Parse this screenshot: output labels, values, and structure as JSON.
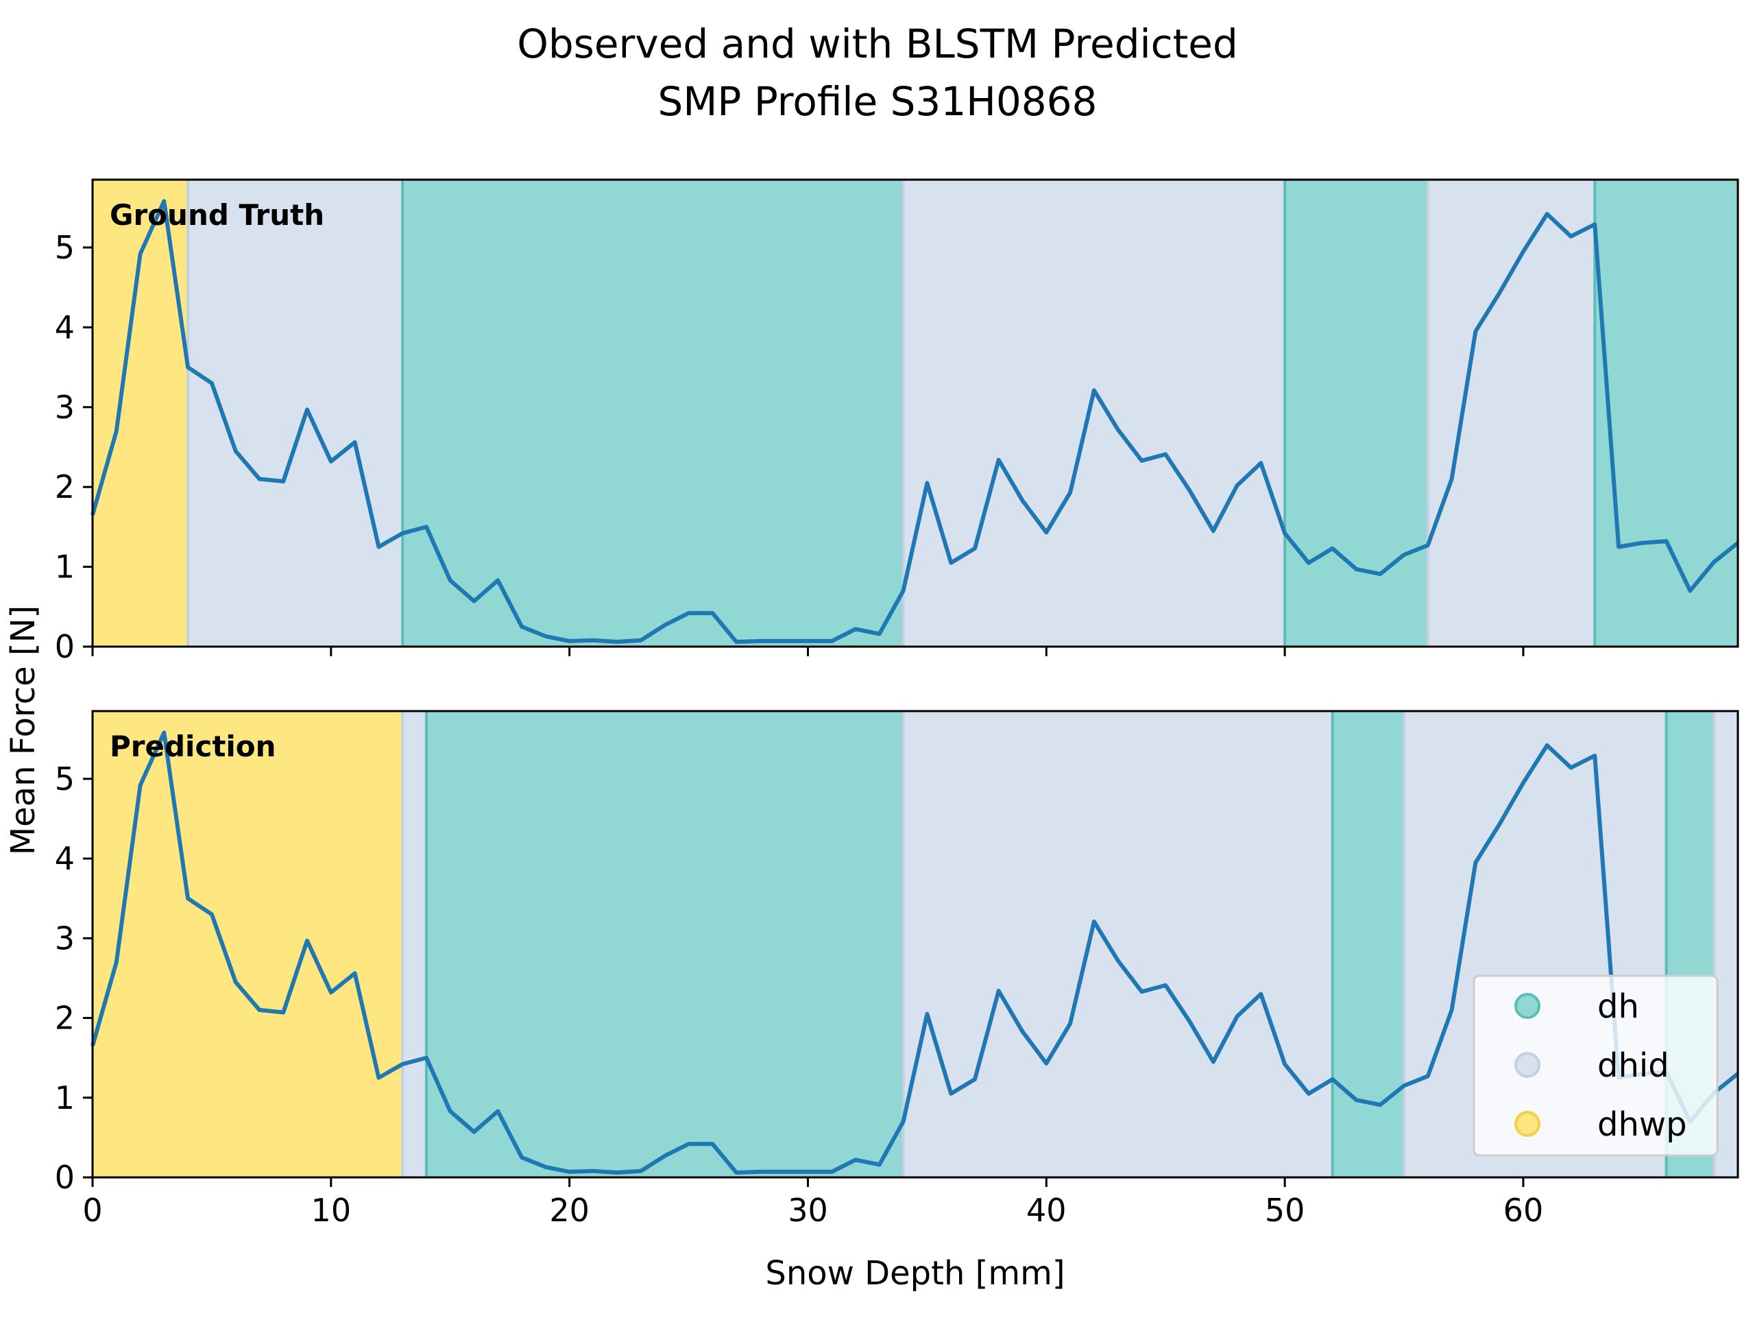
{
  "chart_data": {
    "type": "line",
    "title_line1": "Observed and with BLSTM Predicted",
    "title_line2": "SMP Profile S31H0868",
    "xlabel": "Snow Depth [mm]",
    "ylabel": "Mean Force [N]",
    "xlim": [
      0,
      69
    ],
    "ylim": [
      0,
      5.85
    ],
    "xticks": [
      0,
      10,
      20,
      30,
      40,
      50,
      60
    ],
    "yticks": [
      0,
      1,
      2,
      3,
      4,
      5
    ],
    "grid": false,
    "line_color": "#1f77b4",
    "series": {
      "x": [
        0,
        1,
        2,
        3,
        4,
        5,
        6,
        7,
        8,
        9,
        10,
        11,
        12,
        13,
        14,
        15,
        16,
        17,
        18,
        19,
        20,
        21,
        22,
        23,
        24,
        25,
        26,
        27,
        28,
        29,
        30,
        31,
        32,
        33,
        34,
        35,
        36,
        37,
        38,
        39,
        40,
        41,
        42,
        43,
        44,
        45,
        46,
        47,
        48,
        49,
        50,
        51,
        52,
        53,
        54,
        55,
        56,
        57,
        58,
        59,
        60,
        61,
        62,
        63,
        64,
        65,
        66,
        67,
        68,
        69
      ],
      "y": [
        1.65,
        2.7,
        4.92,
        5.58,
        3.5,
        3.3,
        2.45,
        2.1,
        2.07,
        2.97,
        2.32,
        2.56,
        1.25,
        1.42,
        1.5,
        0.83,
        0.57,
        0.83,
        0.25,
        0.13,
        0.07,
        0.08,
        0.06,
        0.08,
        0.27,
        0.42,
        0.42,
        0.06,
        0.07,
        0.07,
        0.07,
        0.07,
        0.22,
        0.16,
        0.7,
        2.05,
        1.05,
        1.23,
        2.34,
        1.83,
        1.43,
        1.93,
        3.21,
        2.72,
        2.33,
        2.41,
        1.96,
        1.45,
        2.02,
        2.3,
        1.42,
        1.05,
        1.23,
        0.97,
        0.91,
        1.15,
        1.27,
        2.1,
        3.95,
        4.43,
        4.95,
        5.42,
        5.14,
        5.29,
        1.25,
        1.3,
        1.32,
        0.7,
        1.06,
        1.3
      ]
    },
    "panels": [
      {
        "label": "Ground Truth",
        "segments": [
          {
            "from": 0,
            "to": 4,
            "class": "dhwp"
          },
          {
            "from": 4,
            "to": 13,
            "class": "dhid"
          },
          {
            "from": 13,
            "to": 34,
            "class": "dh"
          },
          {
            "from": 34,
            "to": 50,
            "class": "dhid"
          },
          {
            "from": 50,
            "to": 56,
            "class": "dh"
          },
          {
            "from": 56,
            "to": 63,
            "class": "dhid"
          },
          {
            "from": 63,
            "to": 69,
            "class": "dh"
          }
        ]
      },
      {
        "label": "Prediction",
        "segments": [
          {
            "from": 0,
            "to": 13,
            "class": "dhwp"
          },
          {
            "from": 13,
            "to": 14,
            "class": "dhid"
          },
          {
            "from": 14,
            "to": 34,
            "class": "dh"
          },
          {
            "from": 34,
            "to": 52,
            "class": "dhid"
          },
          {
            "from": 52,
            "to": 55,
            "class": "dh"
          },
          {
            "from": 55,
            "to": 66,
            "class": "dhid"
          },
          {
            "from": 66,
            "to": 68,
            "class": "dh"
          },
          {
            "from": 68,
            "to": 69,
            "class": "dhid"
          }
        ]
      }
    ],
    "legend": {
      "placement": "lower-right",
      "entries": [
        {
          "name": "dh",
          "color": "#91d8d4",
          "edge": "#5bbdb6"
        },
        {
          "name": "dhid",
          "color": "#d8e1ee",
          "edge": "#c3d0e1"
        },
        {
          "name": "dhwp",
          "color": "#fee781",
          "edge": "#f3cf4a"
        }
      ]
    }
  }
}
